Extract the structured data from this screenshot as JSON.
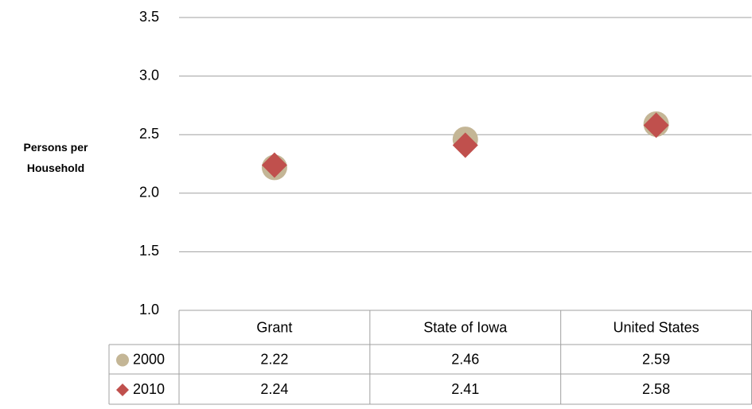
{
  "chart_data": {
    "type": "scatter",
    "y_label": "Persons per Household",
    "categories": [
      "Grant",
      "State of Iowa",
      "United States"
    ],
    "series": [
      {
        "name": "2000",
        "color": "#c4b696",
        "marker": "circle",
        "values": [
          2.22,
          2.46,
          2.59
        ]
      },
      {
        "name": "2010",
        "color": "#c0504d",
        "marker": "diamond",
        "values": [
          2.24,
          2.41,
          2.58
        ]
      }
    ],
    "ylim": [
      1.0,
      3.5
    ],
    "yticks": [
      {
        "value": 1,
        "label": "1.0"
      },
      1.5,
      {
        "value": 2,
        "label": "2.0"
      },
      2.5,
      {
        "value": 3,
        "label": "3.0"
      },
      3.5
    ],
    "grid": true,
    "data_table": true
  }
}
